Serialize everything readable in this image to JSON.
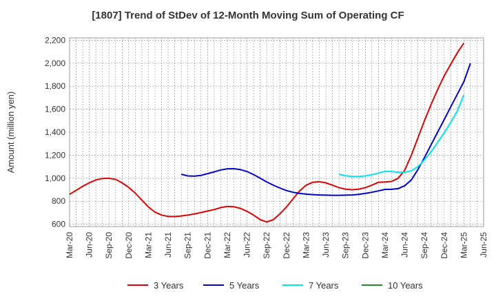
{
  "chart_data": {
    "type": "line",
    "title": "[1807]  Trend of StDev of 12-Month Moving Sum of Operating CF",
    "ylabel": "Amount (million yen)",
    "xlabel": "",
    "ylim": [
      580,
      2220
    ],
    "yticks": [
      600,
      800,
      1000,
      1200,
      1400,
      1600,
      1800,
      2000,
      2200
    ],
    "ytick_labels": [
      "600",
      "800",
      "1,000",
      "1,200",
      "1,400",
      "1,600",
      "1,800",
      "2,000",
      "2,200"
    ],
    "x_categories": [
      "Mar-20",
      "Jun-20",
      "Sep-20",
      "Dec-20",
      "Mar-21",
      "Jun-21",
      "Sep-21",
      "Dec-21",
      "Mar-22",
      "Jun-22",
      "Sep-22",
      "Dec-22",
      "Mar-23",
      "Jun-23",
      "Sep-23",
      "Dec-23",
      "Mar-24",
      "Jun-24",
      "Sep-24",
      "Dec-24",
      "Mar-25",
      "Jun-25"
    ],
    "grid": true,
    "legend_position": "bottom",
    "series": [
      {
        "name": "3 Years",
        "color": "#dd0000",
        "points": [
          [
            "Mar-20",
            860
          ],
          [
            "Apr-20",
            895
          ],
          [
            "May-20",
            930
          ],
          [
            "Jun-20",
            960
          ],
          [
            "Jul-20",
            985
          ],
          [
            "Aug-20",
            998
          ],
          [
            "Sep-20",
            1000
          ],
          [
            "Oct-20",
            990
          ],
          [
            "Nov-20",
            960
          ],
          [
            "Dec-20",
            920
          ],
          [
            "Jan-21",
            870
          ],
          [
            "Feb-21",
            810
          ],
          [
            "Mar-21",
            750
          ],
          [
            "Apr-21",
            705
          ],
          [
            "May-21",
            680
          ],
          [
            "Jun-21",
            668
          ],
          [
            "Jul-21",
            667
          ],
          [
            "Aug-21",
            672
          ],
          [
            "Sep-21",
            680
          ],
          [
            "Oct-21",
            690
          ],
          [
            "Nov-21",
            702
          ],
          [
            "Dec-21",
            715
          ],
          [
            "Jan-22",
            728
          ],
          [
            "Feb-22",
            745
          ],
          [
            "Mar-22",
            755
          ],
          [
            "Apr-22",
            752
          ],
          [
            "May-22",
            738
          ],
          [
            "Jun-22",
            712
          ],
          [
            "Jul-22",
            680
          ],
          [
            "Aug-22",
            640
          ],
          [
            "Sep-22",
            620
          ],
          [
            "Oct-22",
            640
          ],
          [
            "Nov-22",
            690
          ],
          [
            "Dec-22",
            750
          ],
          [
            "Jan-23",
            820
          ],
          [
            "Feb-23",
            890
          ],
          [
            "Mar-23",
            940
          ],
          [
            "Apr-23",
            965
          ],
          [
            "May-23",
            970
          ],
          [
            "Jun-23",
            960
          ],
          [
            "Jul-23",
            940
          ],
          [
            "Aug-23",
            918
          ],
          [
            "Sep-23",
            905
          ],
          [
            "Oct-23",
            900
          ],
          [
            "Nov-23",
            905
          ],
          [
            "Dec-23",
            918
          ],
          [
            "Jan-24",
            940
          ],
          [
            "Feb-24",
            965
          ],
          [
            "Mar-24",
            968
          ],
          [
            "Apr-24",
            972
          ],
          [
            "May-24",
            1000
          ],
          [
            "Jun-24",
            1070
          ],
          [
            "Jul-24",
            1200
          ],
          [
            "Aug-24",
            1350
          ],
          [
            "Sep-24",
            1500
          ],
          [
            "Oct-24",
            1640
          ],
          [
            "Nov-24",
            1770
          ],
          [
            "Dec-24",
            1890
          ],
          [
            "Jan-25",
            1990
          ],
          [
            "Feb-25",
            2090
          ],
          [
            "Mar-25",
            2175
          ]
        ]
      },
      {
        "name": "5 Years",
        "color": "#0000cc",
        "points": [
          [
            "Aug-21",
            1035
          ],
          [
            "Sep-21",
            1020
          ],
          [
            "Oct-21",
            1018
          ],
          [
            "Nov-21",
            1025
          ],
          [
            "Dec-21",
            1040
          ],
          [
            "Jan-22",
            1055
          ],
          [
            "Feb-22",
            1072
          ],
          [
            "Mar-22",
            1082
          ],
          [
            "Apr-22",
            1083
          ],
          [
            "May-22",
            1075
          ],
          [
            "Jun-22",
            1058
          ],
          [
            "Jul-22",
            1032
          ],
          [
            "Aug-22",
            1000
          ],
          [
            "Sep-22",
            968
          ],
          [
            "Oct-22",
            940
          ],
          [
            "Nov-22",
            915
          ],
          [
            "Dec-22",
            893
          ],
          [
            "Jan-23",
            878
          ],
          [
            "Feb-23",
            868
          ],
          [
            "Mar-23",
            862
          ],
          [
            "Apr-23",
            858
          ],
          [
            "May-23",
            855
          ],
          [
            "Jun-23",
            853
          ],
          [
            "Jul-23",
            852
          ],
          [
            "Aug-23",
            852
          ],
          [
            "Sep-23",
            853
          ],
          [
            "Oct-23",
            855
          ],
          [
            "Nov-23",
            860
          ],
          [
            "Dec-23",
            868
          ],
          [
            "Jan-24",
            878
          ],
          [
            "Feb-24",
            890
          ],
          [
            "Mar-24",
            903
          ],
          [
            "Apr-24",
            904
          ],
          [
            "May-24",
            910
          ],
          [
            "Jun-24",
            935
          ],
          [
            "Jul-24",
            985
          ],
          [
            "Aug-24",
            1075
          ],
          [
            "Sep-24",
            1180
          ],
          [
            "Oct-24",
            1290
          ],
          [
            "Nov-24",
            1400
          ],
          [
            "Dec-24",
            1510
          ],
          [
            "Jan-25",
            1620
          ],
          [
            "Feb-25",
            1730
          ],
          [
            "Mar-25",
            1840
          ],
          [
            "Apr-25",
            2000
          ]
        ]
      },
      {
        "name": "7 Years",
        "color": "#00e5ee",
        "points": [
          [
            "Aug-23",
            1035
          ],
          [
            "Sep-23",
            1022
          ],
          [
            "Oct-23",
            1015
          ],
          [
            "Nov-23",
            1015
          ],
          [
            "Dec-23",
            1020
          ],
          [
            "Jan-24",
            1030
          ],
          [
            "Feb-24",
            1045
          ],
          [
            "Mar-24",
            1060
          ],
          [
            "Apr-24",
            1058
          ],
          [
            "May-24",
            1052
          ],
          [
            "Jun-24",
            1052
          ],
          [
            "Jul-24",
            1065
          ],
          [
            "Aug-24",
            1100
          ],
          [
            "Sep-24",
            1160
          ],
          [
            "Oct-24",
            1230
          ],
          [
            "Nov-24",
            1310
          ],
          [
            "Dec-24",
            1395
          ],
          [
            "Jan-25",
            1485
          ],
          [
            "Feb-25",
            1585
          ],
          [
            "Mar-25",
            1725
          ]
        ]
      },
      {
        "name": "10 Years",
        "color": "#228b22",
        "points": []
      }
    ]
  }
}
